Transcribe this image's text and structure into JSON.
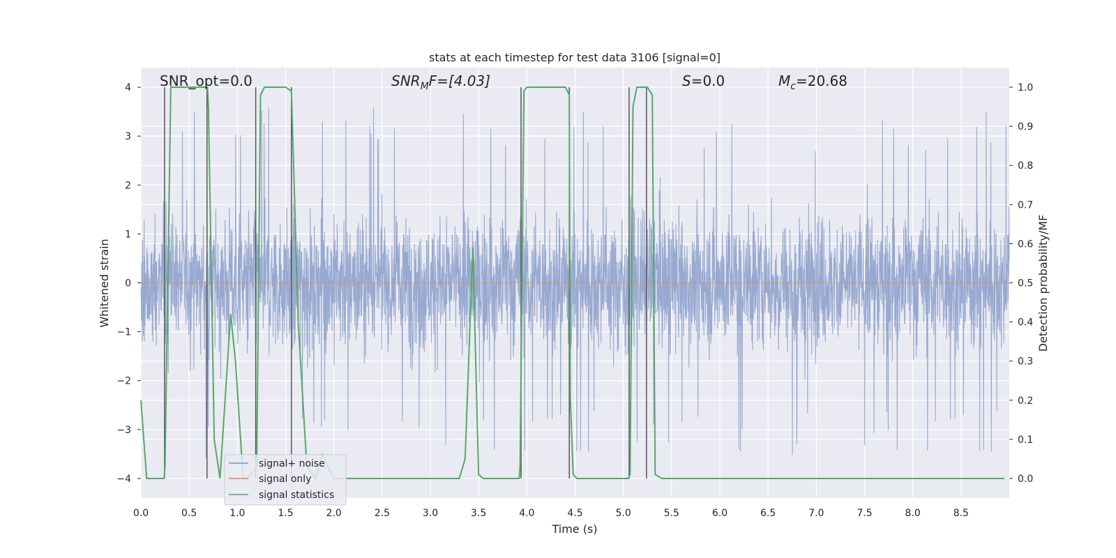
{
  "chart_data": {
    "type": "line",
    "title": "stats at each timestep for test data 3106 [signal=0]",
    "xlabel": "Time (s)",
    "ylabel_left": "Whitened strain",
    "ylabel_right": "Detection probability/MF",
    "xlim": [
      0.0,
      9.0
    ],
    "ylim_left": [
      -4.4,
      4.4
    ],
    "ylim_right": [
      -0.05,
      1.05
    ],
    "xticks": [
      "0.0",
      "0.5",
      "1.0",
      "1.5",
      "2.0",
      "2.5",
      "3.0",
      "3.5",
      "4.0",
      "4.5",
      "5.0",
      "5.5",
      "6.0",
      "6.5",
      "7.0",
      "7.5",
      "8.0",
      "8.5"
    ],
    "yticks_left": [
      "4",
      "3",
      "2",
      "1",
      "0",
      "−1",
      "−2",
      "−3",
      "−4"
    ],
    "yticks_right": [
      "1.0",
      "0.9",
      "0.8",
      "0.7",
      "0.6",
      "0.5",
      "0.4",
      "0.3",
      "0.2",
      "0.1",
      "0.0"
    ],
    "grid": true,
    "legend_position": "bottom-left",
    "annotations": {
      "snr_opt": "SNR_opt=0.0",
      "snr_mf_main": "SNR",
      "snr_mf_sub": "M",
      "snr_mf_rest": "F=[4.03]",
      "s_main": "S",
      "s_rest": "=0.0",
      "mc_main": "M",
      "mc_sub": "c",
      "mc_rest": "=20.68"
    },
    "series": [
      {
        "name": "signal+ noise",
        "color": "#7b93c4",
        "axis": "left",
        "description": "whitened strain noise, approx amplitude +/-2.5 with spikes to +/-3.5",
        "envelope": {
          "typical_max": 2.0,
          "typical_min": -2.2,
          "peak_max": 3.6,
          "peak_min": -3.9
        }
      },
      {
        "name": "signal only",
        "color": "#dd8452",
        "axis": "left",
        "x": [
          0.0,
          9.0
        ],
        "y": [
          0.0,
          0.0
        ]
      },
      {
        "name": "signal statistics",
        "color": "#55a868",
        "axis": "right",
        "x": [
          0.0,
          0.06,
          0.24,
          0.25,
          0.31,
          0.69,
          0.7,
          0.76,
          0.82,
          0.93,
          0.98,
          1.06,
          1.1,
          1.2,
          1.24,
          1.28,
          1.31,
          1.5,
          1.56,
          1.63,
          1.72,
          1.81,
          1.88,
          2.0,
          3.3,
          3.36,
          3.44,
          3.5,
          3.55,
          3.6,
          3.65,
          3.78,
          3.92,
          3.93,
          3.97,
          4.0,
          4.4,
          4.44,
          4.45,
          4.48,
          4.52,
          4.6,
          5.05,
          5.07,
          5.1,
          5.14,
          5.25,
          5.3,
          5.33,
          5.4,
          8.95
        ],
        "y": [
          0.2,
          0.0,
          0.0,
          0.03,
          1.0,
          1.0,
          0.95,
          0.1,
          0.0,
          0.42,
          0.3,
          0.0,
          0.0,
          0.03,
          0.98,
          1.0,
          1.0,
          1.0,
          0.99,
          0.4,
          0.03,
          0.0,
          0.06,
          0.0,
          0.0,
          0.05,
          0.59,
          0.01,
          0.0,
          0.0,
          0.0,
          0.0,
          0.0,
          0.03,
          0.99,
          1.0,
          1.0,
          0.98,
          0.21,
          0.01,
          0.0,
          0.0,
          0.0,
          0.01,
          0.95,
          1.0,
          1.0,
          0.98,
          0.01,
          0.0,
          0.0
        ]
      }
    ],
    "vertical_lines": {
      "color": "#555555",
      "x": [
        0.245,
        0.685,
        1.19,
        1.56,
        3.94,
        4.44,
        5.06,
        5.24
      ]
    }
  },
  "legend": {
    "items": [
      {
        "label": "signal+ noise",
        "color": "#7b93c4"
      },
      {
        "label": "signal only",
        "color": "#dd8452"
      },
      {
        "label": "signal statistics",
        "color": "#55a868"
      }
    ]
  }
}
